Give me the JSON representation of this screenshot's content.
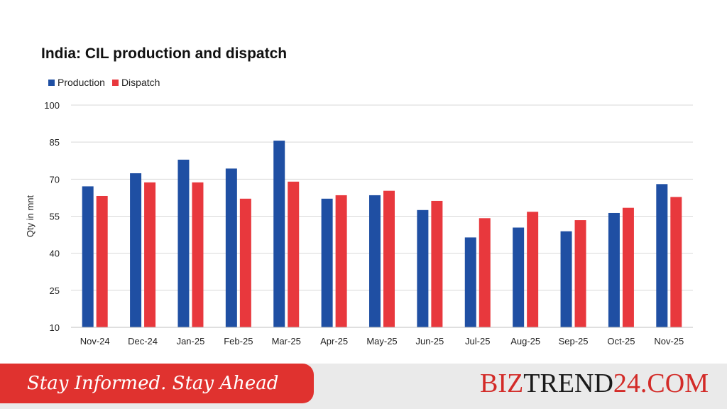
{
  "chart_data": {
    "type": "bar",
    "title": "India: CIL production and dispatch",
    "ylabel": "Qty in mnt",
    "xlabel": "",
    "ylim": [
      10,
      100
    ],
    "yticks": [
      10,
      25,
      40,
      55,
      70,
      85,
      100
    ],
    "grid": true,
    "legend_position": "top-left",
    "categories": [
      "Nov-24",
      "Dec-24",
      "Jan-25",
      "Feb-25",
      "Mar-25",
      "Apr-25",
      "May-25",
      "Jun-25",
      "Jul-25",
      "Aug-25",
      "Sep-25",
      "Oct-25",
      "Nov-25"
    ],
    "series": [
      {
        "name": "Production",
        "color": "#1f4fa3",
        "values": [
          67.1,
          72.4,
          77.9,
          74.3,
          85.6,
          62.1,
          63.5,
          57.5,
          46.4,
          50.4,
          48.9,
          56.3,
          68.0
        ]
      },
      {
        "name": "Dispatch",
        "color": "#e8383d",
        "values": [
          63.2,
          68.7,
          68.7,
          62.1,
          69.0,
          63.5,
          65.3,
          61.2,
          54.2,
          56.8,
          53.4,
          58.4,
          62.8
        ]
      }
    ]
  },
  "footer": {
    "tagline": "Stay Informed. Stay Ahead",
    "brand_part1": "BIZ",
    "brand_part2": "TREND",
    "brand_part3": "24",
    "brand_part4": ".COM"
  }
}
